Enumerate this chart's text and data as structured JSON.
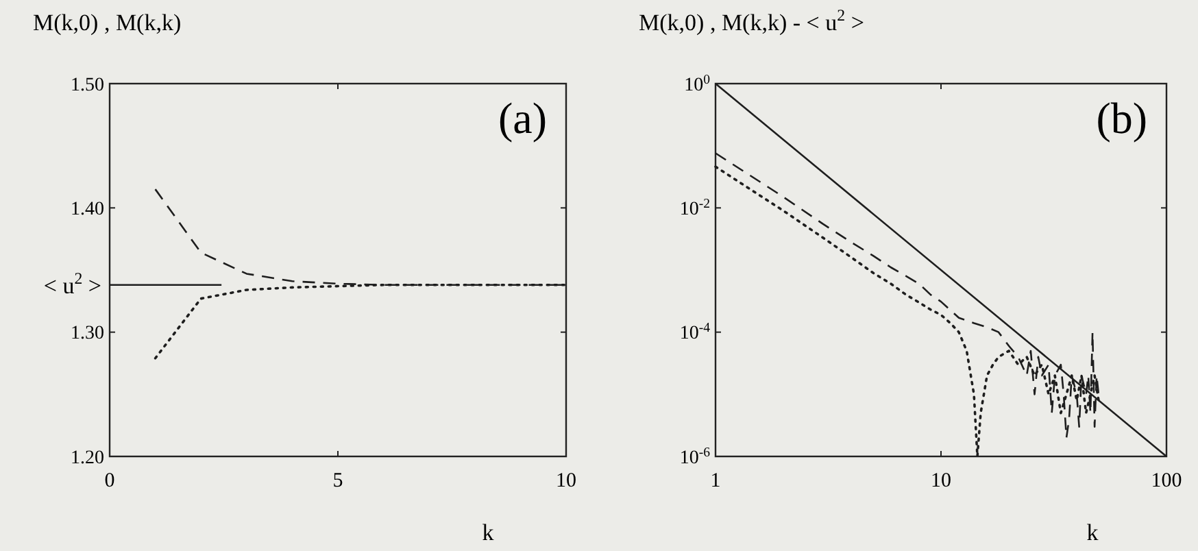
{
  "chart_data": [
    {
      "type": "line",
      "ylabel": "M(k,0) , M(k,k)",
      "xlabel": "k",
      "annotations": [
        "(a)"
      ],
      "xlim": [
        0,
        10
      ],
      "xticks": [
        0,
        5,
        10
      ],
      "ylim": [
        1.2,
        1.5
      ],
      "yticks": [
        {
          "value": 1.2,
          "label": "1.20"
        },
        {
          "value": 1.3,
          "label": "1.30"
        },
        {
          "value": 1.4,
          "label": "1.40"
        },
        {
          "value": 1.5,
          "label": "1.50"
        }
      ],
      "grid": false,
      "marker": "none",
      "series": [
        {
          "name": "< u$^{2}$ >",
          "color": "#1e1e1e",
          "line_style": "solid",
          "x": [
            0,
            2.45
          ],
          "values": [
            1.338,
            1.338
          ]
        },
        {
          "color": "#1e1e1e",
          "line_style": "dashed",
          "x": [
            1,
            2,
            3,
            4,
            5,
            6,
            7,
            8,
            9,
            10
          ],
          "values": [
            1.415,
            1.364,
            1.347,
            1.341,
            1.339,
            1.338,
            1.338,
            1.338,
            1.338,
            1.338
          ]
        },
        {
          "color": "#1e1e1e",
          "line_style": "dotted",
          "x": [
            1,
            2,
            3,
            4,
            5,
            6,
            7,
            8,
            9,
            10
          ],
          "values": [
            1.279,
            1.327,
            1.334,
            1.336,
            1.337,
            1.338,
            1.338,
            1.338,
            1.338,
            1.338
          ]
        }
      ]
    },
    {
      "type": "line",
      "ylabel": "M(k,0) , M(k,k)  - < u$^{2}$ >",
      "xlabel": "k",
      "annotations": [
        "(b)"
      ],
      "log": "xy",
      "xlim": [
        1,
        100
      ],
      "xticks": [
        1,
        10,
        100
      ],
      "ylim": [
        1e-06,
        1
      ],
      "yticks": [
        {
          "value": 1,
          "label": "10$^{0}$"
        },
        {
          "value": 0.01,
          "label": "10$^{-2}$"
        },
        {
          "value": 0.0001,
          "label": "10$^{-4}$"
        },
        {
          "value": 1e-06,
          "label": "10$^{-6}$"
        }
      ],
      "grid": false,
      "marker": "none",
      "series": [
        {
          "color": "#1e1e1e",
          "line_style": "solid",
          "x": [
            1,
            100
          ],
          "values": [
            1,
            1e-06
          ]
        },
        {
          "color": "#1e1e1e",
          "line_style": "dashed",
          "x": [
            1,
            2,
            3,
            4,
            5,
            6,
            7,
            8,
            9,
            10,
            12,
            14,
            16,
            18,
            20,
            22,
            24,
            25,
            26,
            27,
            28,
            30,
            31,
            32,
            34,
            35,
            36,
            37,
            38,
            40,
            41,
            42,
            44,
            45,
            46,
            47,
            48,
            49,
            50
          ],
          "values": [
            0.076,
            0.015,
            0.0055,
            0.0028,
            0.0017,
            0.0011,
            0.0008,
            0.0006,
            0.0004,
            0.00031,
            0.00017,
            0.00014,
            0.00012,
            0.0001,
            6e-05,
            4e-05,
            2e-05,
            5e-05,
            1e-05,
            4e-05,
            2e-05,
            3e-05,
            5e-06,
            2e-05,
            3e-05,
            1e-05,
            2e-06,
            4e-06,
            2e-05,
            1e-05,
            3e-06,
            2e-05,
            1e-05,
            2e-05,
            5e-06,
            0.0001,
            3e-06,
            2e-05,
            1e-05
          ]
        },
        {
          "color": "#1e1e1e",
          "line_style": "dotted",
          "x": [
            1,
            2,
            3,
            4,
            5,
            6,
            7,
            8,
            9,
            10,
            11,
            12,
            13,
            14,
            14.5,
            15,
            16,
            17,
            18,
            20,
            22,
            24,
            26,
            28,
            30,
            32,
            34,
            36,
            38,
            40,
            42,
            44,
            46,
            48,
            50
          ],
          "values": [
            0.046,
            0.009,
            0.0033,
            0.0016,
            0.0009,
            0.0006,
            0.0004,
            0.0003,
            0.00023,
            0.00019,
            0.00014,
            0.0001,
            5e-05,
            1e-05,
            1e-06,
            5e-06,
            2e-05,
            3e-05,
            4e-05,
            5e-05,
            3e-05,
            4e-05,
            2e-05,
            3e-05,
            1e-05,
            2e-05,
            5e-06,
            1e-05,
            2e-05,
            8e-06,
            2e-05,
            5e-06,
            1e-05,
            2e-05,
            8e-06
          ]
        }
      ]
    }
  ]
}
